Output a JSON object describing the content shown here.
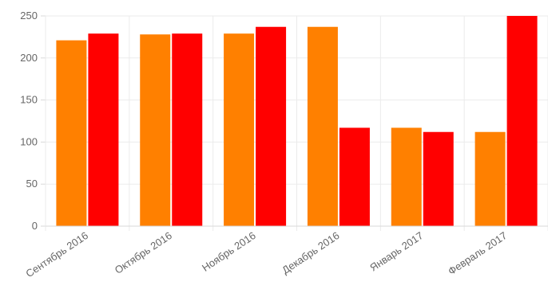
{
  "chart_data": {
    "type": "bar",
    "categories": [
      "Сентябрь 2016",
      "Октябрь 2016",
      "Ноябрь 2016",
      "Декабрь 2016",
      "Январь 2017",
      "Февраль 2017"
    ],
    "series": [
      {
        "values": [
          221,
          228,
          229,
          237,
          117,
          112
        ],
        "color": "#ff8000"
      },
      {
        "values": [
          229,
          229,
          237,
          117,
          112,
          250
        ],
        "color": "#ff0000"
      }
    ],
    "yticks": [
      "0",
      "50",
      "100",
      "150",
      "200",
      "250"
    ],
    "ylim": [
      0,
      250
    ],
    "grid": true,
    "legend": "none"
  }
}
